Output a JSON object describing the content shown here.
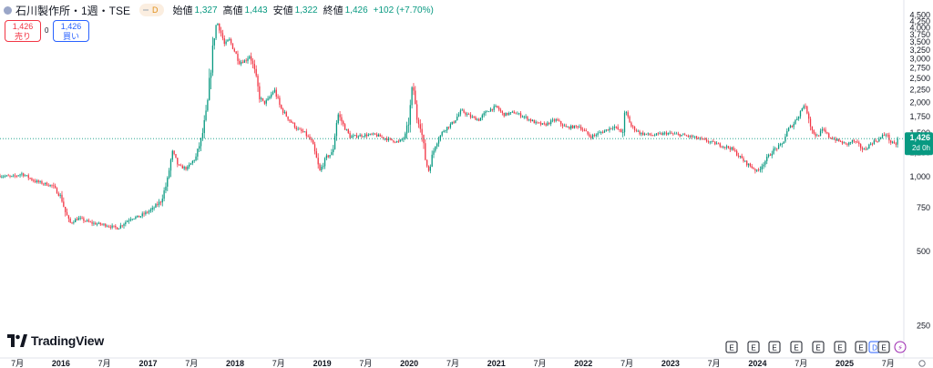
{
  "header": {
    "title": "石川製作所・1週・TSE",
    "interval_badge": "D",
    "open_label": "始値",
    "open": "1,327",
    "high_label": "高値",
    "high": "1,443",
    "low_label": "安値",
    "low": "1,322",
    "close_label": "終値",
    "close": "1,426",
    "change": "+102 (+7.70%)"
  },
  "trade": {
    "sell_price": "1,426",
    "sell_label": "売り",
    "spread": "0",
    "buy_price": "1,426",
    "buy_label": "買い"
  },
  "logo_text": "TradingView",
  "price_tag": {
    "value": "1,426",
    "countdown": "2d 0h"
  },
  "colors": {
    "up": "#089981",
    "down": "#f23645",
    "last_line": "#089981"
  },
  "events": [
    "E",
    "E",
    "E",
    "E",
    "E",
    "E",
    "E",
    "D",
    "E",
    "⚡"
  ],
  "chart_data": {
    "type": "candlestick",
    "y_ticks": [
      250,
      500,
      750,
      1000,
      1250,
      1500,
      1750,
      2000,
      2250,
      2500,
      2750,
      3000,
      3250,
      3500,
      3750,
      4000,
      4250,
      4500
    ],
    "y_tick_labels": [
      "250",
      "500",
      "750",
      "1,000",
      "1,250",
      "1,500",
      "1,750",
      "2,000",
      "2,250",
      "2,500",
      "2,750",
      "3,000",
      "3,250",
      "3,500",
      "3,750",
      "4,000",
      "4,250",
      "4,500"
    ],
    "ylim": [
      200,
      4600
    ],
    "x_range": [
      2015.3,
      2025.68
    ],
    "x_ticks": [
      {
        "t": 2015.5,
        "label": "7月",
        "bold": false
      },
      {
        "t": 2016.0,
        "label": "2016",
        "bold": true
      },
      {
        "t": 2016.5,
        "label": "7月",
        "bold": false
      },
      {
        "t": 2017.0,
        "label": "2017",
        "bold": true
      },
      {
        "t": 2017.5,
        "label": "7月",
        "bold": false
      },
      {
        "t": 2018.0,
        "label": "2018",
        "bold": true
      },
      {
        "t": 2018.5,
        "label": "7月",
        "bold": false
      },
      {
        "t": 2019.0,
        "label": "2019",
        "bold": true
      },
      {
        "t": 2019.5,
        "label": "7月",
        "bold": false
      },
      {
        "t": 2020.0,
        "label": "2020",
        "bold": true
      },
      {
        "t": 2020.5,
        "label": "7月",
        "bold": false
      },
      {
        "t": 2021.0,
        "label": "2021",
        "bold": true
      },
      {
        "t": 2021.5,
        "label": "7月",
        "bold": false
      },
      {
        "t": 2022.0,
        "label": "2022",
        "bold": true
      },
      {
        "t": 2022.5,
        "label": "7月",
        "bold": false
      },
      {
        "t": 2023.0,
        "label": "2023",
        "bold": true
      },
      {
        "t": 2023.5,
        "label": "7月",
        "bold": false
      },
      {
        "t": 2024.0,
        "label": "2024",
        "bold": true
      },
      {
        "t": 2024.5,
        "label": "7月",
        "bold": false
      },
      {
        "t": 2025.0,
        "label": "2025",
        "bold": true
      },
      {
        "t": 2025.5,
        "label": "7月",
        "bold": false
      }
    ],
    "last_price": 1426,
    "close_path": [
      {
        "t": 2015.3,
        "p": 1010
      },
      {
        "t": 2015.45,
        "p": 1000
      },
      {
        "t": 2015.55,
        "p": 1030
      },
      {
        "t": 2015.7,
        "p": 960
      },
      {
        "t": 2015.9,
        "p": 920
      },
      {
        "t": 2016.0,
        "p": 830
      },
      {
        "t": 2016.05,
        "p": 720
      },
      {
        "t": 2016.1,
        "p": 650
      },
      {
        "t": 2016.2,
        "p": 680
      },
      {
        "t": 2016.35,
        "p": 650
      },
      {
        "t": 2016.5,
        "p": 640
      },
      {
        "t": 2016.65,
        "p": 620
      },
      {
        "t": 2016.8,
        "p": 680
      },
      {
        "t": 2016.9,
        "p": 690
      },
      {
        "t": 2017.05,
        "p": 740
      },
      {
        "t": 2017.15,
        "p": 800
      },
      {
        "t": 2017.22,
        "p": 950
      },
      {
        "t": 2017.28,
        "p": 1260
      },
      {
        "t": 2017.35,
        "p": 1100
      },
      {
        "t": 2017.45,
        "p": 1080
      },
      {
        "t": 2017.55,
        "p": 1200
      },
      {
        "t": 2017.62,
        "p": 1450
      },
      {
        "t": 2017.68,
        "p": 1900
      },
      {
        "t": 2017.72,
        "p": 2700
      },
      {
        "t": 2017.76,
        "p": 3700
      },
      {
        "t": 2017.79,
        "p": 4250
      },
      {
        "t": 2017.83,
        "p": 3900
      },
      {
        "t": 2017.88,
        "p": 3400
      },
      {
        "t": 2017.93,
        "p": 3600
      },
      {
        "t": 2017.98,
        "p": 3300
      },
      {
        "t": 2018.05,
        "p": 2900
      },
      {
        "t": 2018.12,
        "p": 2950
      },
      {
        "t": 2018.17,
        "p": 3100
      },
      {
        "t": 2018.22,
        "p": 2700
      },
      {
        "t": 2018.28,
        "p": 2100
      },
      {
        "t": 2018.33,
        "p": 1980
      },
      {
        "t": 2018.38,
        "p": 2050
      },
      {
        "t": 2018.45,
        "p": 2250
      },
      {
        "t": 2018.52,
        "p": 1900
      },
      {
        "t": 2018.62,
        "p": 1700
      },
      {
        "t": 2018.72,
        "p": 1550
      },
      {
        "t": 2018.8,
        "p": 1500
      },
      {
        "t": 2018.88,
        "p": 1380
      },
      {
        "t": 2018.97,
        "p": 1050
      },
      {
        "t": 2019.05,
        "p": 1200
      },
      {
        "t": 2019.12,
        "p": 1250
      },
      {
        "t": 2019.18,
        "p": 1800
      },
      {
        "t": 2019.25,
        "p": 1600
      },
      {
        "t": 2019.32,
        "p": 1450
      },
      {
        "t": 2019.45,
        "p": 1470
      },
      {
        "t": 2019.6,
        "p": 1480
      },
      {
        "t": 2019.75,
        "p": 1420
      },
      {
        "t": 2019.88,
        "p": 1380
      },
      {
        "t": 2019.95,
        "p": 1450
      },
      {
        "t": 2020.0,
        "p": 1700
      },
      {
        "t": 2020.04,
        "p": 2400
      },
      {
        "t": 2020.08,
        "p": 1750
      },
      {
        "t": 2020.13,
        "p": 1600
      },
      {
        "t": 2020.18,
        "p": 1200
      },
      {
        "t": 2020.22,
        "p": 1050
      },
      {
        "t": 2020.3,
        "p": 1350
      },
      {
        "t": 2020.4,
        "p": 1550
      },
      {
        "t": 2020.5,
        "p": 1650
      },
      {
        "t": 2020.6,
        "p": 1850
      },
      {
        "t": 2020.7,
        "p": 1750
      },
      {
        "t": 2020.8,
        "p": 1700
      },
      {
        "t": 2020.9,
        "p": 1850
      },
      {
        "t": 2021.0,
        "p": 1920
      },
      {
        "t": 2021.08,
        "p": 1780
      },
      {
        "t": 2021.2,
        "p": 1820
      },
      {
        "t": 2021.32,
        "p": 1750
      },
      {
        "t": 2021.45,
        "p": 1650
      },
      {
        "t": 2021.55,
        "p": 1620
      },
      {
        "t": 2021.68,
        "p": 1700
      },
      {
        "t": 2021.8,
        "p": 1580
      },
      {
        "t": 2021.95,
        "p": 1600
      },
      {
        "t": 2022.08,
        "p": 1450
      },
      {
        "t": 2022.22,
        "p": 1520
      },
      {
        "t": 2022.35,
        "p": 1600
      },
      {
        "t": 2022.45,
        "p": 1500
      },
      {
        "t": 2022.48,
        "p": 1850
      },
      {
        "t": 2022.55,
        "p": 1600
      },
      {
        "t": 2022.65,
        "p": 1500
      },
      {
        "t": 2022.8,
        "p": 1470
      },
      {
        "t": 2022.95,
        "p": 1500
      },
      {
        "t": 2023.1,
        "p": 1480
      },
      {
        "t": 2023.25,
        "p": 1450
      },
      {
        "t": 2023.4,
        "p": 1400
      },
      {
        "t": 2023.55,
        "p": 1350
      },
      {
        "t": 2023.7,
        "p": 1300
      },
      {
        "t": 2023.85,
        "p": 1150
      },
      {
        "t": 2024.0,
        "p": 1050
      },
      {
        "t": 2024.08,
        "p": 1150
      },
      {
        "t": 2024.18,
        "p": 1280
      },
      {
        "t": 2024.28,
        "p": 1350
      },
      {
        "t": 2024.35,
        "p": 1550
      },
      {
        "t": 2024.42,
        "p": 1650
      },
      {
        "t": 2024.48,
        "p": 1800
      },
      {
        "t": 2024.53,
        "p": 1950
      },
      {
        "t": 2024.58,
        "p": 1800
      },
      {
        "t": 2024.62,
        "p": 1550
      },
      {
        "t": 2024.68,
        "p": 1450
      },
      {
        "t": 2024.75,
        "p": 1550
      },
      {
        "t": 2024.82,
        "p": 1450
      },
      {
        "t": 2024.92,
        "p": 1400
      },
      {
        "t": 2025.02,
        "p": 1350
      },
      {
        "t": 2025.1,
        "p": 1400
      },
      {
        "t": 2025.22,
        "p": 1280
      },
      {
        "t": 2025.32,
        "p": 1380
      },
      {
        "t": 2025.4,
        "p": 1420
      },
      {
        "t": 2025.47,
        "p": 1500
      },
      {
        "t": 2025.53,
        "p": 1380
      },
      {
        "t": 2025.58,
        "p": 1340
      },
      {
        "t": 2025.62,
        "p": 1426
      }
    ]
  }
}
